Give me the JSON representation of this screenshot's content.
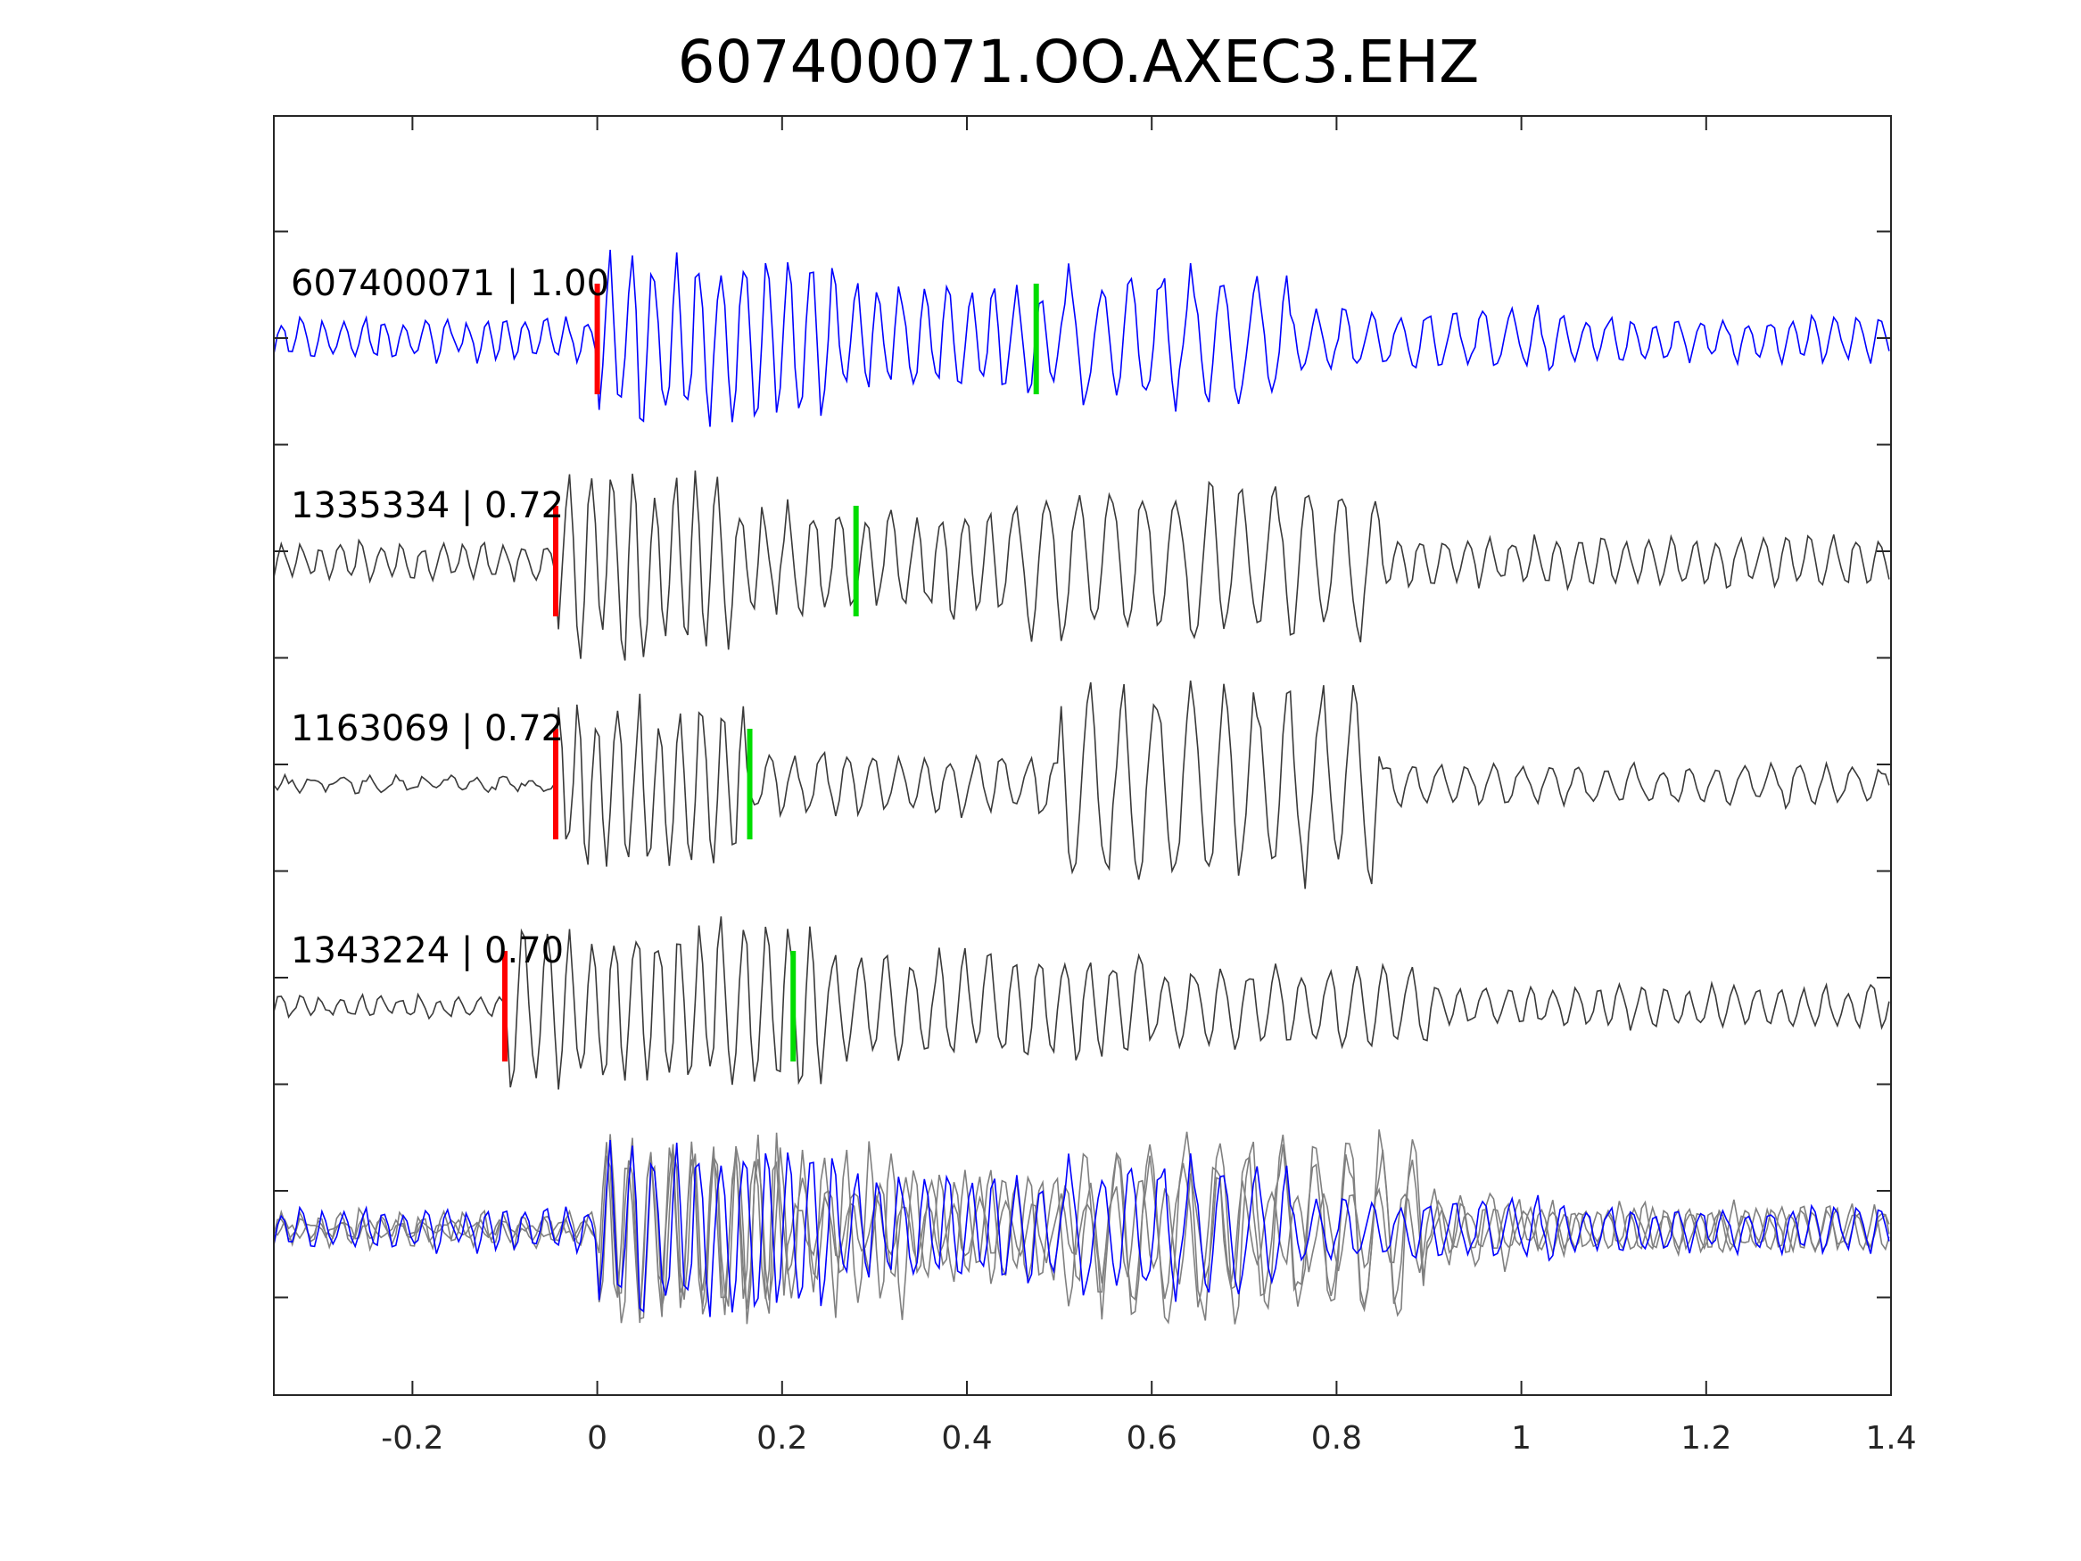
{
  "chart_data": {
    "type": "line",
    "title": "607400071.OO.AXEC3.EHZ",
    "xlabel": "",
    "ylabel": "",
    "xlim": [
      -0.35,
      1.4
    ],
    "x_ticks": [
      -0.2,
      0,
      0.2,
      0.4,
      0.6,
      0.8,
      1,
      1.2,
      1.4
    ],
    "x_tick_labels": [
      "-0.2",
      "0",
      "0.2",
      "0.4",
      "0.6",
      "0.8",
      "1",
      "1.2",
      "1.4"
    ],
    "y_tick_count": 12,
    "y_tick_labels_visible": false,
    "grid": false,
    "legend": "none",
    "colors": {
      "reference": "#0000ff",
      "neighbor": "#3a3a3a",
      "overlay_neighbor": "#808080",
      "p_pick": "#ff0000",
      "s_pick": "#00dd00"
    },
    "series": [
      {
        "name": "607400071 | 1.00",
        "event_id": "607400071",
        "correlation": "1.00",
        "color": "#0000ff",
        "p_pick": 0.0,
        "s_pick": 0.475,
        "segments": [
          {
            "x0": -0.35,
            "x1": 0.0,
            "amp": 0.22,
            "period": 0.022
          },
          {
            "x0": 0.0,
            "x1": 0.26,
            "amp": 0.88,
            "period": 0.024
          },
          {
            "x0": 0.26,
            "x1": 0.5,
            "amp": 0.55,
            "period": 0.025
          },
          {
            "x0": 0.5,
            "x1": 0.75,
            "amp": 0.7,
            "period": 0.035
          },
          {
            "x0": 0.75,
            "x1": 1.05,
            "amp": 0.3,
            "period": 0.03
          },
          {
            "x0": 1.05,
            "x1": 1.4,
            "amp": 0.22,
            "period": 0.025
          }
        ]
      },
      {
        "name": "1335334 | 0.72",
        "event_id": "1335334",
        "correlation": "0.72",
        "color": "#3a3a3a",
        "p_pick": -0.045,
        "s_pick": 0.28,
        "segments": [
          {
            "x0": -0.35,
            "x1": -0.045,
            "amp": 0.18,
            "period": 0.022
          },
          {
            "x0": -0.045,
            "x1": 0.15,
            "amp": 0.95,
            "period": 0.023
          },
          {
            "x0": 0.15,
            "x1": 0.45,
            "amp": 0.55,
            "period": 0.027
          },
          {
            "x0": 0.45,
            "x1": 0.85,
            "amp": 0.8,
            "period": 0.035
          },
          {
            "x0": 0.85,
            "x1": 1.4,
            "amp": 0.25,
            "period": 0.025
          }
        ]
      },
      {
        "name": "1163069 | 0.72",
        "event_id": "1163069",
        "correlation": "0.72",
        "color": "#3a3a3a",
        "p_pick": -0.045,
        "s_pick": 0.165,
        "segments": [
          {
            "x0": -0.35,
            "x1": -0.045,
            "amp": 0.06,
            "period": 0.03
          },
          {
            "x0": -0.045,
            "x1": 0.16,
            "amp": 0.85,
            "period": 0.022
          },
          {
            "x0": 0.16,
            "x1": 0.5,
            "amp": 0.3,
            "period": 0.028
          },
          {
            "x0": 0.5,
            "x1": 0.85,
            "amp": 1.0,
            "period": 0.035
          },
          {
            "x0": 0.85,
            "x1": 1.4,
            "amp": 0.2,
            "period": 0.03
          }
        ]
      },
      {
        "name": "1343224 | 0.70",
        "event_id": "1343224",
        "correlation": "0.70",
        "color": "#3a3a3a",
        "p_pick": -0.1,
        "s_pick": 0.212,
        "segments": [
          {
            "x0": -0.35,
            "x1": -0.1,
            "amp": 0.1,
            "period": 0.022
          },
          {
            "x0": -0.1,
            "x1": 0.25,
            "amp": 0.85,
            "period": 0.024
          },
          {
            "x0": 0.25,
            "x1": 0.6,
            "amp": 0.55,
            "period": 0.028
          },
          {
            "x0": 0.6,
            "x1": 0.9,
            "amp": 0.4,
            "period": 0.03
          },
          {
            "x0": 0.9,
            "x1": 1.4,
            "amp": 0.2,
            "period": 0.025
          }
        ]
      }
    ],
    "overlay": {
      "description_row": 5,
      "members": [
        "607400071",
        "1335334",
        "1163069",
        "1343224"
      ],
      "aligned_on": "p_pick"
    }
  }
}
